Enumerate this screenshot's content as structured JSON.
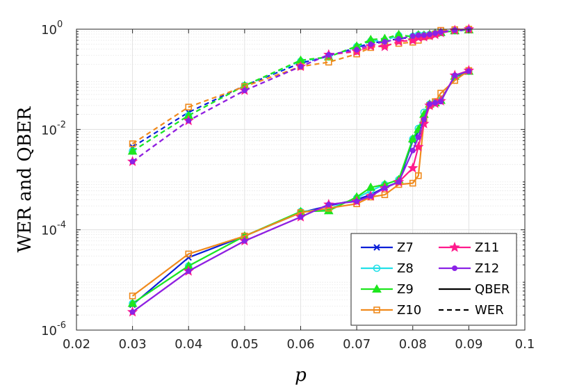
{
  "chart_data": {
    "type": "line",
    "title": "",
    "xlabel": "p",
    "ylabel": "WER and QBER",
    "xlim": [
      0.02,
      0.1
    ],
    "ylim": [
      1e-06,
      1
    ],
    "yscale": "log",
    "grid": true,
    "minor_grid": true,
    "legend_position": "bottom-right",
    "xticks": [
      "0.02",
      "0.03",
      "0.04",
      "0.05",
      "0.06",
      "0.07",
      "0.08",
      "0.09",
      "0.1"
    ],
    "yticks": [
      {
        "base": "10",
        "exp": "-6",
        "value": 1e-06
      },
      {
        "base": "10",
        "exp": "-4",
        "value": 0.0001
      },
      {
        "base": "10",
        "exp": "-2",
        "value": 0.01
      },
      {
        "base": "10",
        "exp": "0",
        "value": 1
      }
    ],
    "legend": {
      "series": [
        {
          "name": "Z7",
          "color": "#0a1fd8",
          "marker": "x"
        },
        {
          "name": "Z8",
          "color": "#22e0e8",
          "marker": "circle"
        },
        {
          "name": "Z9",
          "color": "#1ee61e",
          "marker": "triangle"
        },
        {
          "name": "Z10",
          "color": "#f08a1c",
          "marker": "square"
        },
        {
          "name": "Z11",
          "color": "#ff1a8c",
          "marker": "star"
        },
        {
          "name": "Z12",
          "color": "#8a22e6",
          "marker": "dot"
        }
      ],
      "styles": [
        {
          "name": "QBER",
          "dash": "solid"
        },
        {
          "name": "WER",
          "dash": "dashed"
        }
      ]
    },
    "series": [
      {
        "name": "Z7",
        "metric": "QBER",
        "color": "#0a1fd8",
        "marker": "x",
        "dash": "solid",
        "x": [
          0.03,
          0.04,
          0.05,
          0.06,
          0.065,
          0.07,
          0.0725,
          0.075,
          0.0775,
          0.08,
          0.081,
          0.082,
          0.083,
          0.084,
          0.085,
          0.0875,
          0.09
        ],
        "y": [
          3.2e-06,
          2.8e-05,
          7.5e-05,
          0.00022,
          0.0003,
          0.0004,
          0.0005,
          0.0007,
          0.0009,
          0.006,
          0.009,
          0.016,
          0.03,
          0.035,
          0.04,
          0.11,
          0.145
        ]
      },
      {
        "name": "Z7",
        "metric": "WER",
        "color": "#0a1fd8",
        "marker": "x",
        "dash": "dashed",
        "x": [
          0.03,
          0.04,
          0.05,
          0.06,
          0.065,
          0.07,
          0.0725,
          0.075,
          0.0775,
          0.08,
          0.081,
          0.082,
          0.083,
          0.084,
          0.085,
          0.0875,
          0.09
        ],
        "y": [
          0.0045,
          0.022,
          0.075,
          0.21,
          0.29,
          0.43,
          0.53,
          0.57,
          0.65,
          0.68,
          0.7,
          0.72,
          0.75,
          0.8,
          0.85,
          0.93,
          0.97
        ]
      },
      {
        "name": "Z8",
        "metric": "QBER",
        "color": "#22e0e8",
        "marker": "circle",
        "dash": "solid",
        "x": [
          0.03,
          0.04,
          0.05,
          0.06,
          0.065,
          0.07,
          0.0725,
          0.075,
          0.0775,
          0.08,
          0.081,
          0.082,
          0.083,
          0.084,
          0.085,
          0.0875,
          0.09
        ],
        "y": [
          3.4e-06,
          1.9e-05,
          7.5e-05,
          0.00023,
          0.00026,
          0.00043,
          0.0006,
          0.0008,
          0.001,
          0.0065,
          0.0105,
          0.022,
          0.032,
          0.034,
          0.038,
          0.115,
          0.145
        ]
      },
      {
        "name": "Z8",
        "metric": "WER",
        "color": "#22e0e8",
        "marker": "circle",
        "dash": "dashed",
        "x": [
          0.03,
          0.04,
          0.05,
          0.06,
          0.065,
          0.07,
          0.0725,
          0.075,
          0.0775,
          0.08,
          0.081,
          0.082,
          0.083,
          0.084,
          0.085,
          0.0875,
          0.09
        ],
        "y": [
          0.0037,
          0.019,
          0.075,
          0.23,
          0.28,
          0.45,
          0.58,
          0.6,
          0.75,
          0.72,
          0.77,
          0.76,
          0.78,
          0.82,
          0.86,
          0.93,
          0.97
        ]
      },
      {
        "name": "Z9",
        "metric": "QBER",
        "color": "#1ee61e",
        "marker": "triangle",
        "dash": "solid",
        "x": [
          0.03,
          0.04,
          0.05,
          0.06,
          0.065,
          0.07,
          0.0725,
          0.075,
          0.0775,
          0.08,
          0.081,
          0.082,
          0.083,
          0.084,
          0.085,
          0.0875,
          0.09
        ],
        "y": [
          3.4e-06,
          1.9e-05,
          7.5e-05,
          0.00023,
          0.00024,
          0.00045,
          0.0007,
          0.0008,
          0.001,
          0.0065,
          0.01,
          0.02,
          0.032,
          0.034,
          0.038,
          0.115,
          0.145
        ]
      },
      {
        "name": "Z9",
        "metric": "WER",
        "color": "#1ee61e",
        "marker": "triangle",
        "dash": "dashed",
        "x": [
          0.03,
          0.04,
          0.05,
          0.06,
          0.065,
          0.07,
          0.0725,
          0.075,
          0.0775,
          0.08,
          0.081,
          0.082,
          0.083,
          0.084,
          0.085,
          0.0875,
          0.09
        ],
        "y": [
          0.0037,
          0.019,
          0.075,
          0.24,
          0.28,
          0.46,
          0.62,
          0.65,
          0.78,
          0.7,
          0.77,
          0.76,
          0.79,
          0.83,
          0.86,
          0.93,
          0.97
        ]
      },
      {
        "name": "Z10",
        "metric": "QBER",
        "color": "#f08a1c",
        "marker": "square",
        "dash": "solid",
        "x": [
          0.03,
          0.04,
          0.05,
          0.06,
          0.065,
          0.07,
          0.0725,
          0.075,
          0.0775,
          0.08,
          0.081,
          0.082,
          0.083,
          0.084,
          0.085,
          0.0875,
          0.09
        ],
        "y": [
          4.8e-06,
          3.3e-05,
          7.5e-05,
          0.00022,
          0.00027,
          0.00033,
          0.00045,
          0.0005,
          0.0008,
          0.00085,
          0.0012,
          0.015,
          0.03,
          0.036,
          0.053,
          0.095,
          0.15
        ]
      },
      {
        "name": "Z10",
        "metric": "WER",
        "color": "#f08a1c",
        "marker": "square",
        "dash": "dashed",
        "x": [
          0.03,
          0.04,
          0.05,
          0.06,
          0.065,
          0.07,
          0.0725,
          0.075,
          0.0775,
          0.08,
          0.081,
          0.082,
          0.083,
          0.084,
          0.085,
          0.0875,
          0.09
        ],
        "y": [
          0.0052,
          0.028,
          0.072,
          0.18,
          0.22,
          0.32,
          0.43,
          0.48,
          0.52,
          0.55,
          0.6,
          0.7,
          0.73,
          0.8,
          0.95,
          0.98,
          1.0
        ]
      },
      {
        "name": "Z11",
        "metric": "QBER",
        "color": "#ff1a8c",
        "marker": "star",
        "dash": "solid",
        "x": [
          0.03,
          0.04,
          0.05,
          0.06,
          0.065,
          0.07,
          0.0725,
          0.075,
          0.0775,
          0.08,
          0.081,
          0.082,
          0.083,
          0.084,
          0.085,
          0.0875,
          0.09
        ],
        "y": [
          2.3e-06,
          1.5e-05,
          6e-05,
          0.00018,
          0.00032,
          0.00037,
          0.00047,
          0.00068,
          0.0009,
          0.0017,
          0.0045,
          0.013,
          0.03,
          0.033,
          0.037,
          0.12,
          0.15
        ]
      },
      {
        "name": "Z11",
        "metric": "WER",
        "color": "#ff1a8c",
        "marker": "star",
        "dash": "dashed",
        "x": [
          0.03,
          0.04,
          0.05,
          0.06,
          0.065,
          0.07,
          0.0725,
          0.075,
          0.0775,
          0.08,
          0.081,
          0.082,
          0.083,
          0.084,
          0.085,
          0.0875,
          0.09
        ],
        "y": [
          0.0023,
          0.015,
          0.06,
          0.18,
          0.31,
          0.36,
          0.46,
          0.45,
          0.57,
          0.6,
          0.68,
          0.7,
          0.74,
          0.78,
          0.85,
          0.95,
          1.0
        ]
      },
      {
        "name": "Z12",
        "metric": "QBER",
        "color": "#8a22e6",
        "marker": "dot",
        "dash": "solid",
        "x": [
          0.03,
          0.04,
          0.05,
          0.06,
          0.065,
          0.07,
          0.0725,
          0.075,
          0.0775,
          0.08,
          0.081,
          0.082,
          0.083,
          0.084,
          0.085,
          0.0875,
          0.09
        ],
        "y": [
          2.3e-06,
          1.5e-05,
          6e-05,
          0.00018,
          0.00032,
          0.00037,
          0.00047,
          0.00068,
          0.0009,
          0.0038,
          0.007,
          0.016,
          0.032,
          0.034,
          0.036,
          0.12,
          0.145
        ]
      },
      {
        "name": "Z12",
        "metric": "WER",
        "color": "#8a22e6",
        "marker": "dot",
        "dash": "dashed",
        "x": [
          0.03,
          0.04,
          0.05,
          0.06,
          0.065,
          0.07,
          0.0725,
          0.075,
          0.0775,
          0.08,
          0.081,
          0.082,
          0.083,
          0.084,
          0.085,
          0.0875,
          0.09
        ],
        "y": [
          0.0023,
          0.015,
          0.06,
          0.18,
          0.31,
          0.39,
          0.5,
          0.56,
          0.64,
          0.73,
          0.76,
          0.76,
          0.79,
          0.83,
          0.88,
          0.96,
          1.0
        ]
      }
    ]
  }
}
